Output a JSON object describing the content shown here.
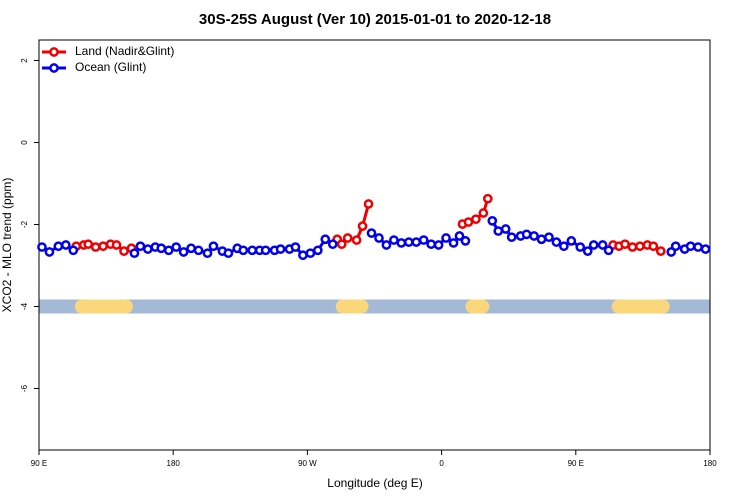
{
  "chart_data": {
    "type": "line",
    "title": "30S-25S August (Ver 10)   2015-01-01 to 2020-12-18",
    "x_label": "Longitude (deg E)",
    "y_label": "XCO2 - MLO trend (ppm)",
    "xlim": [
      90,
      540
    ],
    "ylim": [
      -7.5,
      2.5
    ],
    "xticks": [
      {
        "value": 90,
        "label": "90 E"
      },
      180,
      {
        "value": 270,
        "label": "90 W"
      },
      {
        "value": 360,
        "label": "0"
      },
      {
        "value": 450,
        "label": "90 E"
      },
      {
        "value": 540,
        "label": "180"
      }
    ],
    "yticks": [
      2,
      0,
      -2,
      -4,
      -6
    ],
    "legend": "top-left",
    "surface_band": {
      "y": -4,
      "color": "#a4b9d6",
      "land_color": "#f9d77a",
      "land_x": [
        [
          114,
          153
        ],
        [
          289,
          311
        ],
        [
          376,
          392
        ],
        [
          474,
          513
        ]
      ]
    },
    "series": [
      {
        "name": "Land (Nadir&Glint)",
        "color": "#ee0000",
        "x": [
          115,
          120,
          123,
          128,
          133,
          138,
          142,
          147,
          152,
          null,
          290,
          293,
          297,
          303,
          307,
          311,
          null,
          374,
          378,
          383,
          388,
          391,
          null,
          475,
          479,
          483,
          488,
          493,
          498,
          502,
          507
        ],
        "values": [
          -2.53,
          -2.5,
          -2.48,
          -2.55,
          -2.53,
          -2.48,
          -2.5,
          -2.65,
          -2.58,
          null,
          -2.36,
          -2.48,
          -2.33,
          -2.38,
          -2.04,
          -1.5,
          null,
          -1.99,
          -1.94,
          -1.87,
          -1.72,
          -1.37,
          null,
          -2.5,
          -2.53,
          -2.48,
          -2.55,
          -2.53,
          -2.5,
          -2.53,
          -2.65
        ]
      },
      {
        "name": "Ocean (Glint)",
        "color": "#0000ee",
        "x": [
          92,
          97,
          103,
          108,
          113,
          null,
          154,
          158,
          163,
          168,
          172,
          177,
          182,
          187,
          192,
          197,
          203,
          207,
          213,
          217,
          223,
          227,
          233,
          238,
          242,
          248,
          252,
          258,
          262,
          267,
          272,
          277,
          282,
          287,
          null,
          313,
          318,
          323,
          328,
          333,
          338,
          343,
          348,
          353,
          358,
          363,
          368,
          372,
          376,
          null,
          394,
          398,
          403,
          407,
          413,
          417,
          422,
          427,
          432,
          437,
          442,
          447,
          453,
          458,
          462,
          468,
          472,
          null,
          514,
          517,
          523,
          527,
          532,
          537
        ],
        "values": [
          -2.55,
          -2.67,
          -2.53,
          -2.5,
          -2.63,
          null,
          -2.7,
          -2.53,
          -2.6,
          -2.55,
          -2.58,
          -2.63,
          -2.55,
          -2.67,
          -2.58,
          -2.63,
          -2.7,
          -2.53,
          -2.65,
          -2.7,
          -2.58,
          -2.63,
          -2.63,
          -2.63,
          -2.63,
          -2.63,
          -2.6,
          -2.6,
          -2.55,
          -2.75,
          -2.7,
          -2.63,
          -2.36,
          -2.48,
          null,
          -2.21,
          -2.33,
          -2.5,
          -2.38,
          -2.45,
          -2.43,
          -2.43,
          -2.38,
          -2.48,
          -2.5,
          -2.33,
          -2.45,
          -2.28,
          -2.4,
          null,
          -1.91,
          -2.16,
          -2.11,
          -2.31,
          -2.28,
          -2.24,
          -2.28,
          -2.36,
          -2.31,
          -2.43,
          -2.53,
          -2.4,
          -2.55,
          -2.65,
          -2.5,
          -2.5,
          -2.63,
          null,
          -2.67,
          -2.53,
          -2.6,
          -2.53,
          -2.55,
          -2.6
        ]
      }
    ]
  }
}
